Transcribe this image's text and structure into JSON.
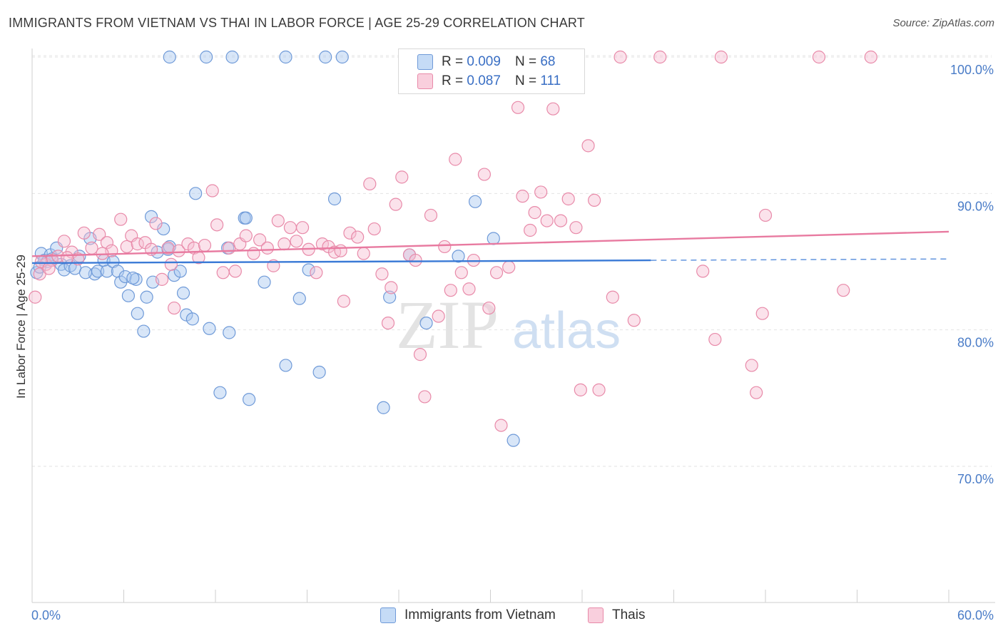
{
  "title": "IMMIGRANTS FROM VIETNAM VS THAI IN LABOR FORCE | AGE 25-29 CORRELATION CHART",
  "source": "Source: ZipAtlas.com",
  "watermark": {
    "zip": "ZIP",
    "atlas": "atlas"
  },
  "legend": {
    "r_label": "R =",
    "n_label": "N =",
    "rows": [
      {
        "r": "0.009",
        "n": "68",
        "color": "#a9c8f0",
        "border": "#6f9ad8"
      },
      {
        "r": "0.087",
        "n": "111",
        "color": "#f7bfd2",
        "border": "#e88aa9"
      }
    ]
  },
  "bottom_legend": [
    "Immigrants from Vietnam",
    "Thais"
  ],
  "chart_data": {
    "type": "scatter",
    "xlabel": "",
    "ylabel": "In Labor Force | Age 25-29",
    "xlim": [
      0,
      60
    ],
    "ylim": [
      60,
      101
    ],
    "x_tick_labels": [
      "0.0%",
      "60.0%"
    ],
    "y_ticks": [
      70,
      80,
      90,
      100
    ],
    "y_tick_labels": [
      "70.0%",
      "80.0%",
      "90.0%",
      "100.0%"
    ],
    "grid": true,
    "series": [
      {
        "name": "Immigrants from Vietnam",
        "color": "#a9c8f0",
        "stroke": "#6f9ad8",
        "trend": {
          "x0": 0,
          "y0": 84.9,
          "x1": 40.5,
          "y1": 85.1,
          "dash_to": 60,
          "dash_y": 85.2,
          "color": "#3a7ad6"
        },
        "points": [
          [
            0.3,
            84.2
          ],
          [
            0.6,
            85.6
          ],
          [
            0.8,
            85.1
          ],
          [
            1.0,
            85.0
          ],
          [
            1.2,
            85.5
          ],
          [
            1.6,
            86.0
          ],
          [
            1.9,
            84.8
          ],
          [
            2.1,
            84.4
          ],
          [
            2.5,
            84.7
          ],
          [
            2.8,
            84.5
          ],
          [
            3.1,
            85.4
          ],
          [
            3.8,
            86.7
          ],
          [
            4.1,
            84.1
          ],
          [
            4.3,
            84.3
          ],
          [
            4.7,
            85.1
          ],
          [
            4.9,
            84.3
          ],
          [
            5.3,
            85.0
          ],
          [
            5.6,
            84.3
          ],
          [
            5.8,
            83.5
          ],
          [
            6.1,
            83.9
          ],
          [
            6.3,
            82.5
          ],
          [
            6.8,
            83.7
          ],
          [
            6.9,
            81.2
          ],
          [
            7.3,
            79.9
          ],
          [
            7.5,
            82.4
          ],
          [
            7.8,
            88.3
          ],
          [
            7.9,
            83.5
          ],
          [
            8.2,
            85.7
          ],
          [
            8.6,
            87.4
          ],
          [
            8.9,
            85.9
          ],
          [
            9.0,
            86.1
          ],
          [
            9.0,
            100.0
          ],
          [
            9.3,
            84.0
          ],
          [
            9.7,
            84.3
          ],
          [
            9.9,
            82.7
          ],
          [
            10.1,
            81.1
          ],
          [
            10.5,
            80.8
          ],
          [
            10.7,
            90.0
          ],
          [
            11.6,
            80.1
          ],
          [
            11.4,
            100.0
          ],
          [
            12.3,
            75.4
          ],
          [
            12.8,
            86.0
          ],
          [
            12.9,
            79.8
          ],
          [
            13.1,
            100.0
          ],
          [
            13.9,
            88.2
          ],
          [
            14.0,
            88.2
          ],
          [
            14.2,
            74.9
          ],
          [
            15.2,
            83.5
          ],
          [
            16.6,
            77.4
          ],
          [
            16.6,
            100.0
          ],
          [
            17.5,
            82.3
          ],
          [
            18.1,
            84.4
          ],
          [
            18.8,
            76.9
          ],
          [
            19.2,
            100.0
          ],
          [
            19.8,
            89.6
          ],
          [
            20.3,
            100.0
          ],
          [
            23.0,
            74.3
          ],
          [
            23.4,
            82.4
          ],
          [
            24.7,
            85.5
          ],
          [
            25.8,
            80.5
          ],
          [
            27.9,
            85.4
          ],
          [
            29.0,
            89.4
          ],
          [
            30.2,
            86.7
          ],
          [
            31.5,
            71.9
          ],
          [
            0.5,
            84.6
          ],
          [
            1.3,
            85.2
          ],
          [
            3.5,
            84.2
          ],
          [
            6.6,
            83.8
          ]
        ]
      },
      {
        "name": "Thais",
        "color": "#f7bfd2",
        "stroke": "#e88aa9",
        "trend": {
          "x0": 0,
          "y0": 85.4,
          "x1": 60,
          "y1": 87.2,
          "color": "#e87aa0"
        },
        "points": [
          [
            0.2,
            82.4
          ],
          [
            0.5,
            84.1
          ],
          [
            0.9,
            84.8
          ],
          [
            1.3,
            85.1
          ],
          [
            1.7,
            85.4
          ],
          [
            2.1,
            86.5
          ],
          [
            2.6,
            85.7
          ],
          [
            3.0,
            85.2
          ],
          [
            3.4,
            87.1
          ],
          [
            3.9,
            86.0
          ],
          [
            4.4,
            87.0
          ],
          [
            4.9,
            86.4
          ],
          [
            5.2,
            85.8
          ],
          [
            5.8,
            88.1
          ],
          [
            6.2,
            86.1
          ],
          [
            6.5,
            86.9
          ],
          [
            6.9,
            86.3
          ],
          [
            7.4,
            86.4
          ],
          [
            7.8,
            85.9
          ],
          [
            8.1,
            87.8
          ],
          [
            8.5,
            83.7
          ],
          [
            8.9,
            86.0
          ],
          [
            9.3,
            81.6
          ],
          [
            9.6,
            85.8
          ],
          [
            10.2,
            86.3
          ],
          [
            10.6,
            86.0
          ],
          [
            10.9,
            85.3
          ],
          [
            11.3,
            86.2
          ],
          [
            11.8,
            90.2
          ],
          [
            12.1,
            87.7
          ],
          [
            12.5,
            84.2
          ],
          [
            12.9,
            86.0
          ],
          [
            13.3,
            84.3
          ],
          [
            13.6,
            86.3
          ],
          [
            14.0,
            86.9
          ],
          [
            14.5,
            85.6
          ],
          [
            14.9,
            86.6
          ],
          [
            15.4,
            86.0
          ],
          [
            15.8,
            84.7
          ],
          [
            16.1,
            88.0
          ],
          [
            16.5,
            86.3
          ],
          [
            16.9,
            87.5
          ],
          [
            17.3,
            86.5
          ],
          [
            17.7,
            87.5
          ],
          [
            18.1,
            85.9
          ],
          [
            18.6,
            84.2
          ],
          [
            19.0,
            86.3
          ],
          [
            19.4,
            86.1
          ],
          [
            19.8,
            85.7
          ],
          [
            20.2,
            85.8
          ],
          [
            20.4,
            82.1
          ],
          [
            20.8,
            87.1
          ],
          [
            21.3,
            86.8
          ],
          [
            21.7,
            85.6
          ],
          [
            22.1,
            90.7
          ],
          [
            22.4,
            87.4
          ],
          [
            22.9,
            84.1
          ],
          [
            23.3,
            80.5
          ],
          [
            23.5,
            83.1
          ],
          [
            23.8,
            89.2
          ],
          [
            24.2,
            91.2
          ],
          [
            24.7,
            85.5
          ],
          [
            25.1,
            85.1
          ],
          [
            25.4,
            78.2
          ],
          [
            25.7,
            75.1
          ],
          [
            26.1,
            88.4
          ],
          [
            26.6,
            81.0
          ],
          [
            27.0,
            86.1
          ],
          [
            27.4,
            82.9
          ],
          [
            27.7,
            92.5
          ],
          [
            28.1,
            84.2
          ],
          [
            28.6,
            83.0
          ],
          [
            28.9,
            85.1
          ],
          [
            29.6,
            91.4
          ],
          [
            29.9,
            81.6
          ],
          [
            30.4,
            84.2
          ],
          [
            30.7,
            73.0
          ],
          [
            31.2,
            84.6
          ],
          [
            31.8,
            96.3
          ],
          [
            32.1,
            89.8
          ],
          [
            32.6,
            87.3
          ],
          [
            32.9,
            88.6
          ],
          [
            33.3,
            90.1
          ],
          [
            33.7,
            88.0
          ],
          [
            34.1,
            96.2
          ],
          [
            34.6,
            88.0
          ],
          [
            35.1,
            89.6
          ],
          [
            35.6,
            87.5
          ],
          [
            35.9,
            75.6
          ],
          [
            36.4,
            93.5
          ],
          [
            36.8,
            89.5
          ],
          [
            37.1,
            75.6
          ],
          [
            38.0,
            82.4
          ],
          [
            38.5,
            100.0
          ],
          [
            39.4,
            80.7
          ],
          [
            41.1,
            100.0
          ],
          [
            43.9,
            84.3
          ],
          [
            44.7,
            79.3
          ],
          [
            45.1,
            100.0
          ],
          [
            47.1,
            77.4
          ],
          [
            47.4,
            75.4
          ],
          [
            47.8,
            81.2
          ],
          [
            48.0,
            88.4
          ],
          [
            51.5,
            100.0
          ],
          [
            53.1,
            82.9
          ],
          [
            54.9,
            100.0
          ],
          [
            0.6,
            85.0
          ],
          [
            1.1,
            84.5
          ],
          [
            2.3,
            85.3
          ],
          [
            4.6,
            85.6
          ],
          [
            9.1,
            84.8
          ]
        ]
      }
    ]
  }
}
